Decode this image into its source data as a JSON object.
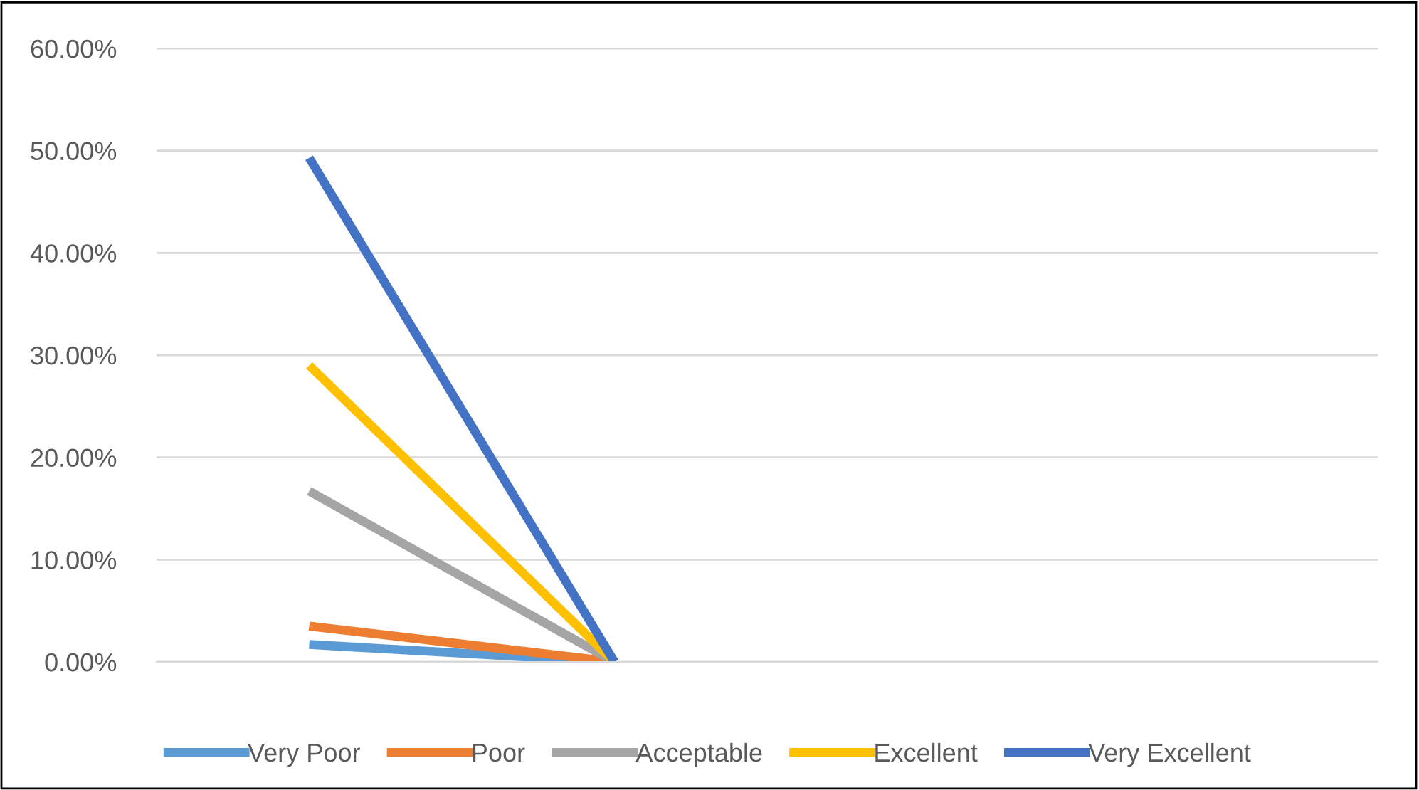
{
  "chart_data": {
    "type": "line",
    "categories": [
      null,
      null,
      null,
      null
    ],
    "series": [
      {
        "name": "Very Poor",
        "color": "#5b9bd5",
        "values": [
          1.7,
          0,
          null,
          null
        ]
      },
      {
        "name": "Poor",
        "color": "#ed7d31",
        "values": [
          3.5,
          0,
          null,
          null
        ]
      },
      {
        "name": "Acceptable",
        "color": "#a5a5a5",
        "values": [
          16.7,
          0,
          null,
          null
        ]
      },
      {
        "name": "Excellent",
        "color": "#ffc000",
        "values": [
          29.0,
          0,
          null,
          null
        ]
      },
      {
        "name": "Very Excellent",
        "color": "#4472c4",
        "values": [
          49.3,
          0,
          null,
          null
        ]
      }
    ],
    "ylim": [
      0,
      60
    ],
    "yticks": [
      {
        "value": 0,
        "label": "0.00%"
      },
      {
        "value": 10,
        "label": "10.00%"
      },
      {
        "value": 20,
        "label": "20.00%"
      },
      {
        "value": 30,
        "label": "30.00%"
      },
      {
        "value": 40,
        "label": "40.00%"
      },
      {
        "value": 50,
        "label": "50.00%"
      },
      {
        "value": 60,
        "label": "60.00%"
      }
    ],
    "grid": "y",
    "legend": "bottom",
    "marker": "none",
    "line_style": "solid"
  }
}
